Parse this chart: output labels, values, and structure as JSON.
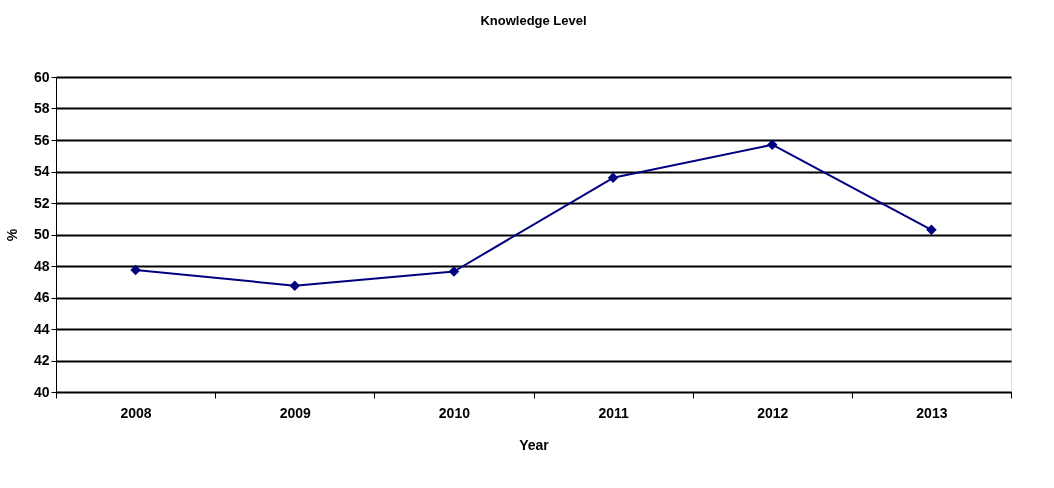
{
  "chart_data": {
    "type": "line",
    "title": "Knowledge Level",
    "xlabel": "Year",
    "ylabel": "%",
    "categories": [
      "2008",
      "2009",
      "2010",
      "2011",
      "2012",
      "2013"
    ],
    "series": [
      {
        "color": "#000080",
        "values": [
          47.75,
          46.75,
          47.65,
          53.6,
          55.7,
          50.3
        ]
      }
    ],
    "ylim": [
      40,
      60
    ],
    "yticks": [
      40,
      42,
      44,
      46,
      48,
      50,
      52,
      54,
      56,
      58,
      60
    ],
    "grid": "y",
    "marker": "diamond",
    "line_style": "solid",
    "legend": false
  }
}
